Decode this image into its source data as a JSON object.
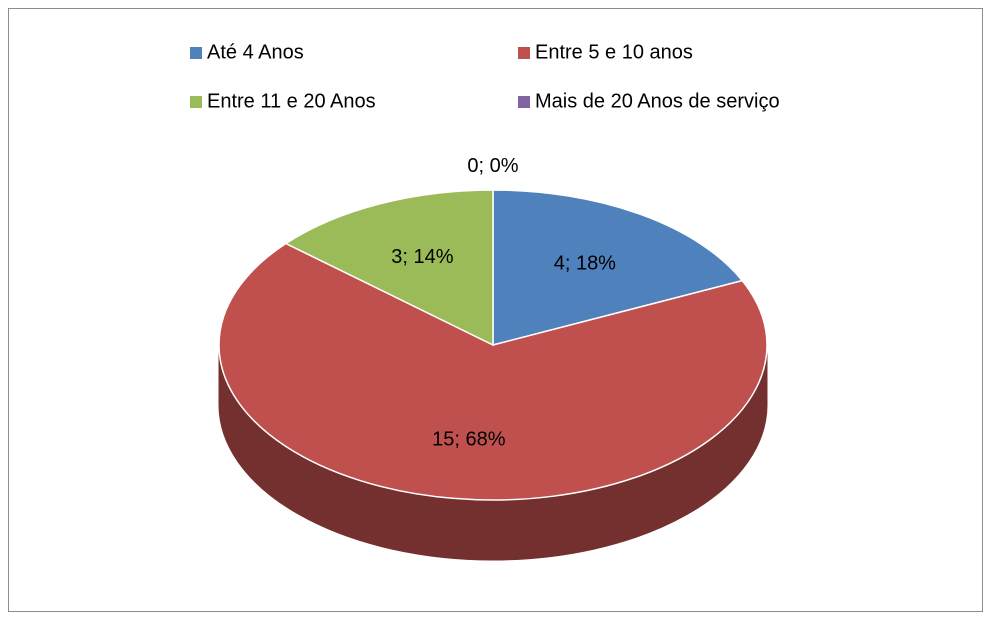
{
  "chart_data": {
    "type": "pie",
    "categories": [
      "Até 4 Anos",
      "Entre 5 e 10 anos",
      "Entre 11 e 20 Anos",
      "Mais de 20 Anos de serviço"
    ],
    "values": [
      4,
      15,
      3,
      0
    ],
    "value_labels": [
      "4; 18%",
      "15; 68%",
      "3; 14%",
      "0; 0%"
    ],
    "colors": [
      "#4f81bd",
      "#c0504d",
      "#9bbb59",
      "#8064a2"
    ],
    "legend": "top"
  }
}
